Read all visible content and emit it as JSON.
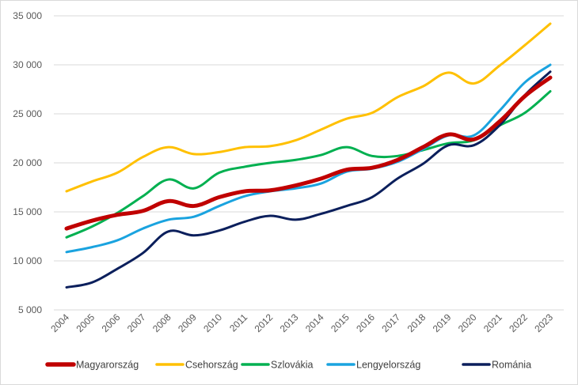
{
  "chart_data": {
    "type": "line",
    "title": "",
    "xlabel": "",
    "ylabel": "",
    "ylim": [
      5000,
      35000
    ],
    "yticks": [
      5000,
      10000,
      15000,
      20000,
      25000,
      30000,
      35000
    ],
    "ytick_labels": [
      "5 000",
      "10 000",
      "15 000",
      "20 000",
      "25 000",
      "30 000",
      "35 000"
    ],
    "grid": true,
    "legend_position": "bottom",
    "categories": [
      "2004",
      "2005",
      "2006",
      "2007",
      "2008",
      "2009",
      "2010",
      "2011",
      "2012",
      "2013",
      "2014",
      "2015",
      "2016",
      "2017",
      "2018",
      "2019",
      "2020",
      "2021",
      "2022",
      "2023"
    ],
    "series": [
      {
        "name": "Magyarország",
        "color": "#c00000",
        "width": 5,
        "values": [
          13300,
          14100,
          14700,
          15100,
          16100,
          15600,
          16500,
          17100,
          17200,
          17700,
          18400,
          19300,
          19500,
          20300,
          21600,
          22900,
          22400,
          24200,
          26800,
          28700
        ]
      },
      {
        "name": "Csehország",
        "color": "#ffc000",
        "width": 3,
        "values": [
          17100,
          18100,
          19000,
          20600,
          21600,
          20900,
          21100,
          21600,
          21700,
          22300,
          23400,
          24500,
          25100,
          26700,
          27800,
          29200,
          28100,
          29900,
          32000,
          34200
        ]
      },
      {
        "name": "Szlovákia",
        "color": "#00b050",
        "width": 3,
        "values": [
          12400,
          13500,
          14900,
          16600,
          18300,
          17400,
          19000,
          19600,
          20000,
          20300,
          20800,
          21600,
          20700,
          20700,
          21300,
          22000,
          22300,
          23800,
          25100,
          27300
        ]
      },
      {
        "name": "Lengyelország",
        "color": "#1aa3df",
        "width": 3,
        "values": [
          10900,
          11400,
          12100,
          13300,
          14200,
          14500,
          15600,
          16600,
          17100,
          17400,
          17900,
          19100,
          19400,
          20100,
          21400,
          22800,
          22800,
          25300,
          28200,
          30000
        ]
      },
      {
        "name": "Románia",
        "color": "#0b1f5c",
        "width": 3,
        "values": [
          7300,
          7800,
          9200,
          10800,
          13000,
          12600,
          13100,
          14000,
          14600,
          14200,
          14800,
          15600,
          16500,
          18400,
          19900,
          21800,
          21800,
          23800,
          26900,
          29300
        ]
      }
    ]
  }
}
